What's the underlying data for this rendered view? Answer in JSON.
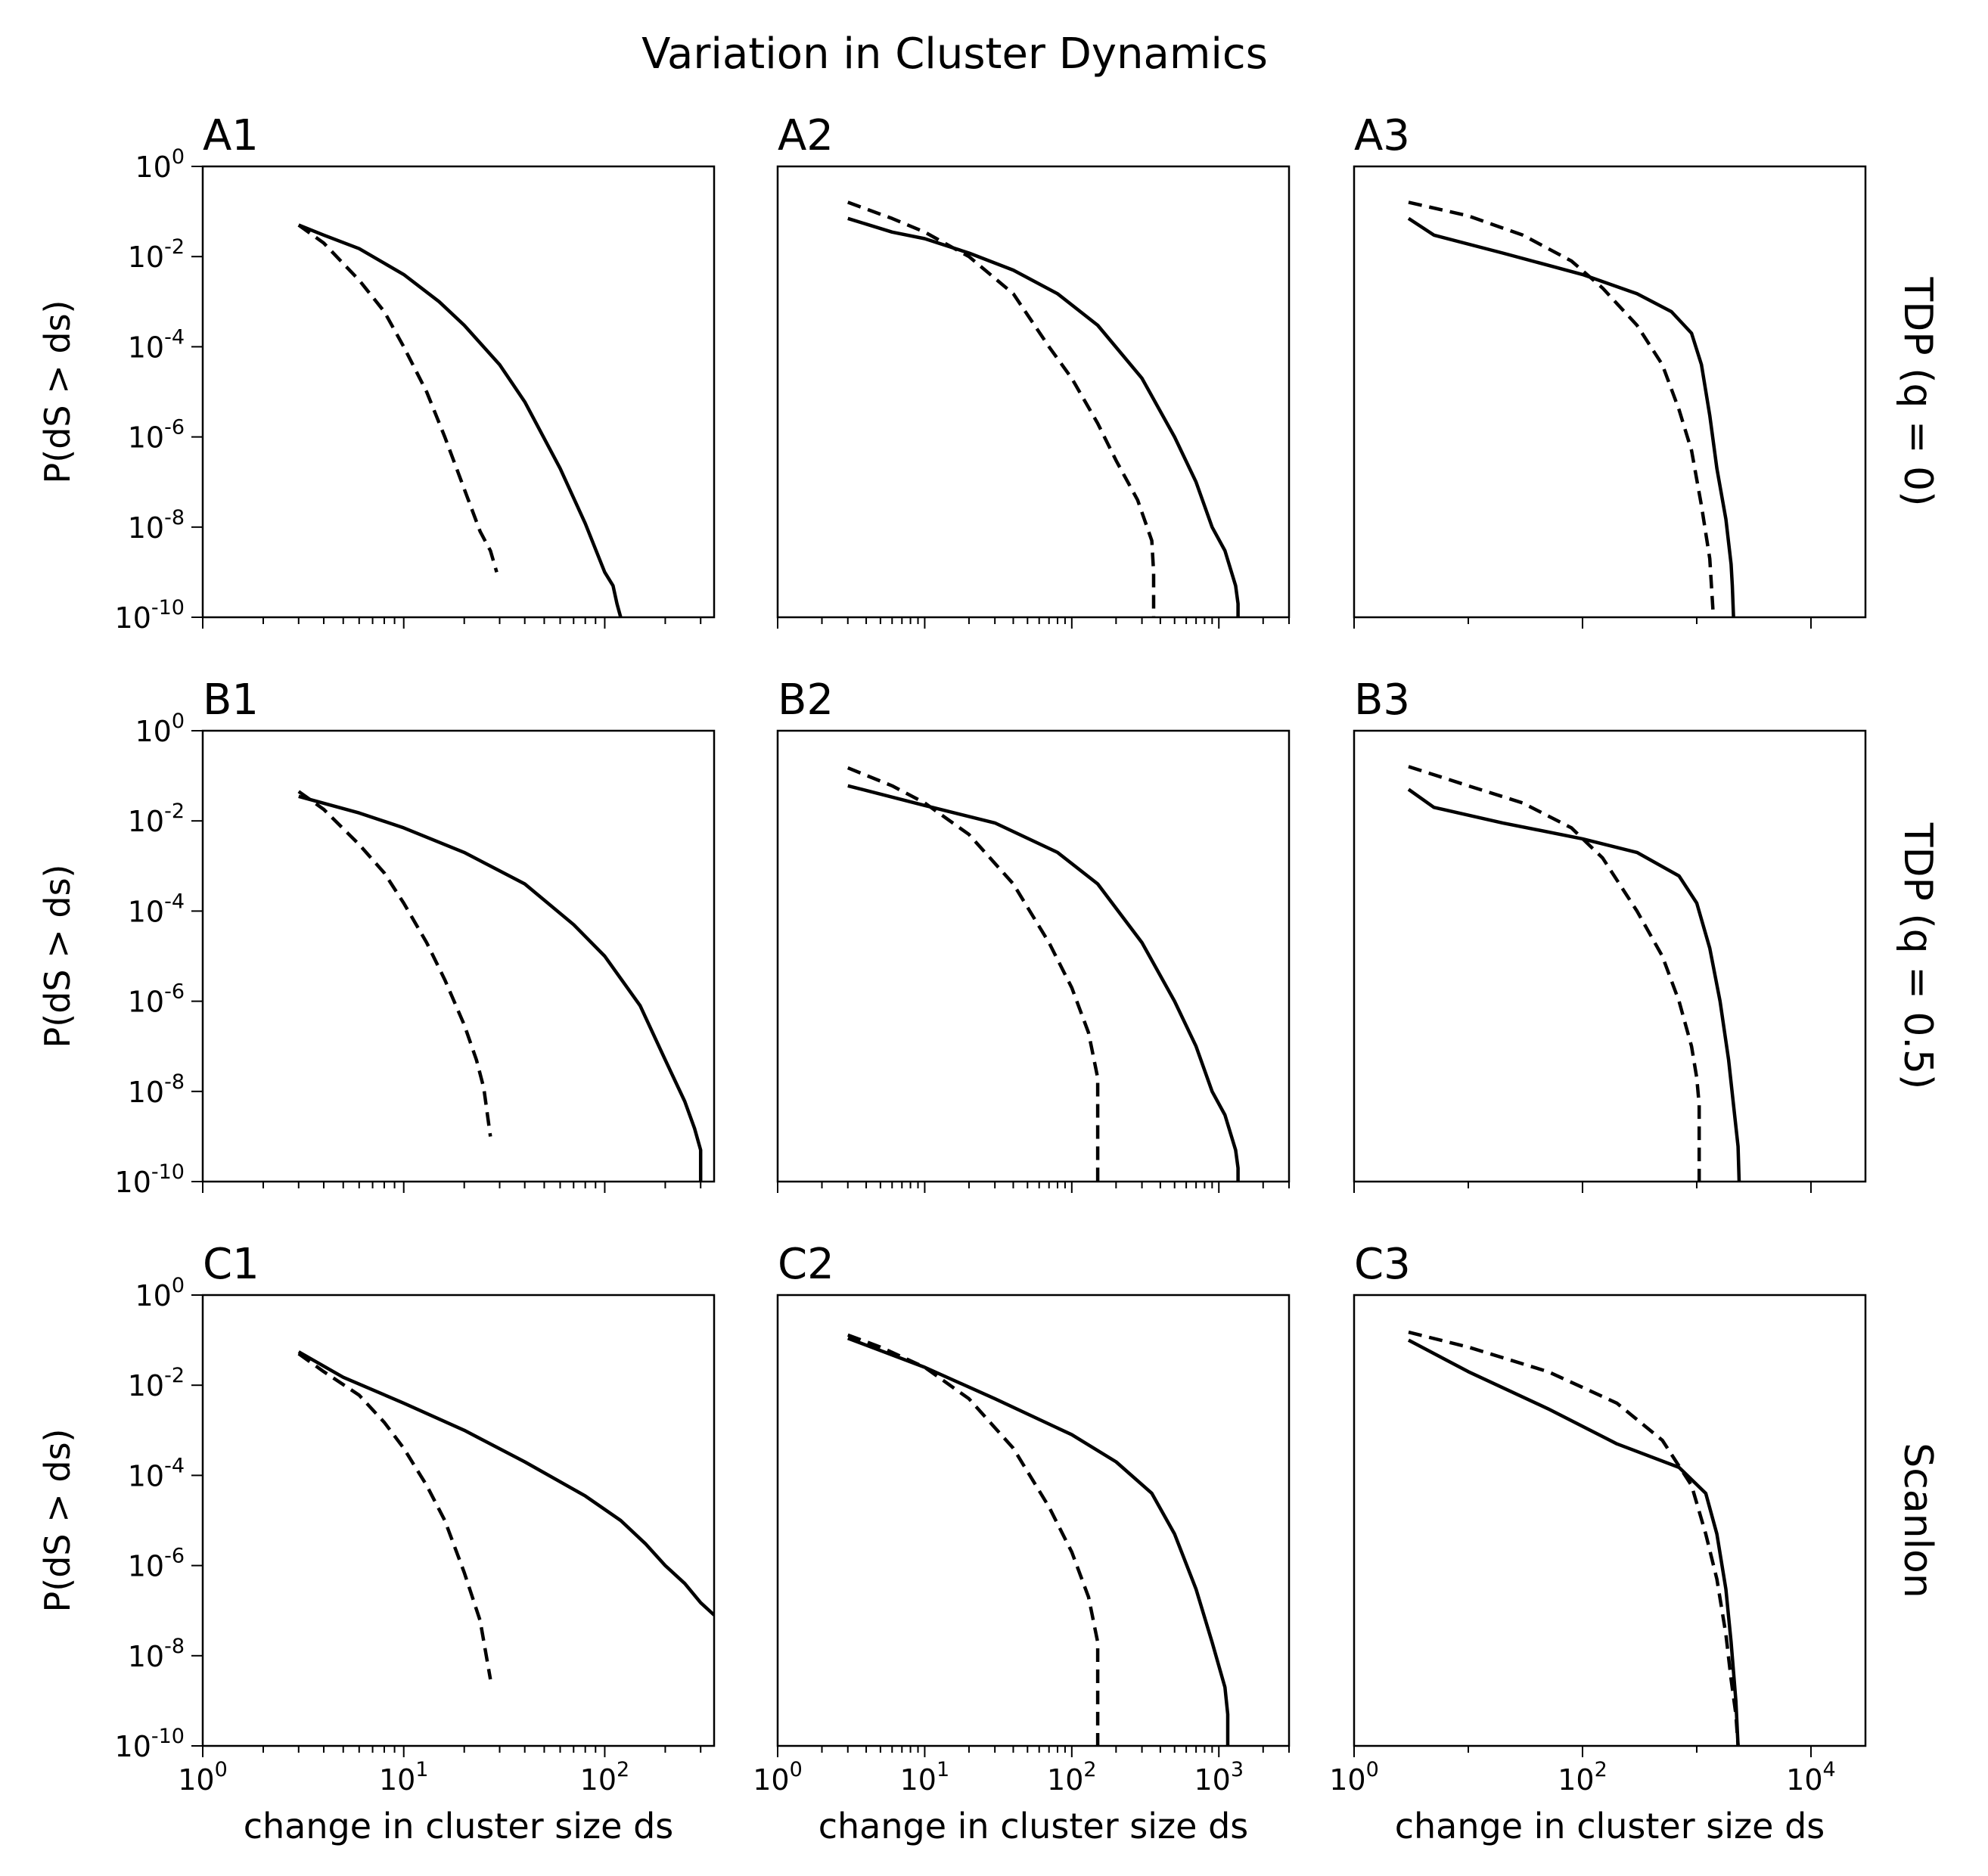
{
  "figure": {
    "title": "Variation in Cluster Dynamics",
    "row_labels": [
      "TDP (q = 0)",
      "TDP (q = 0.5)",
      "Scanlon"
    ],
    "xlabel": "change in cluster size ds",
    "ylabel": "P(dS > ds)",
    "colors": {
      "line": "#000000",
      "background": "#ffffff"
    }
  },
  "chart_data": [
    {
      "panel": "A1",
      "type": "line",
      "xscale": "log",
      "yscale": "log",
      "xlim": [
        1,
        350
      ],
      "ylim": [
        1e-10,
        1
      ],
      "series": [
        {
          "style": "solid",
          "x": [
            3,
            4,
            6,
            10,
            15,
            20,
            30,
            40,
            60,
            80,
            100,
            110,
            115,
            120,
            120
          ],
          "y": [
            0.05,
            0.03,
            0.015,
            0.004,
            0.001,
            0.0003,
            4e-05,
            6e-06,
            2e-07,
            1.2e-08,
            1e-09,
            5e-10,
            2e-10,
            1e-10,
            1e-10
          ]
        },
        {
          "style": "dashed",
          "x": [
            3,
            4,
            5,
            6,
            8,
            10,
            13,
            16,
            20,
            24,
            27,
            29
          ],
          "y": [
            0.05,
            0.02,
            0.007,
            0.003,
            0.0006,
            0.0001,
            1e-05,
            1e-06,
            7e-08,
            8e-09,
            3e-09,
            1e-09
          ]
        }
      ]
    },
    {
      "panel": "A2",
      "type": "line",
      "xscale": "log",
      "yscale": "log",
      "xlim": [
        1,
        3000
      ],
      "ylim": [
        1e-10,
        1
      ],
      "series": [
        {
          "style": "solid",
          "x": [
            3,
            6,
            10,
            20,
            40,
            80,
            150,
            300,
            500,
            700,
            900,
            1100,
            1300,
            1350,
            1350
          ],
          "y": [
            0.07,
            0.035,
            0.025,
            0.012,
            0.005,
            0.0015,
            0.0003,
            2e-05,
            1e-06,
            1e-07,
            1e-08,
            3e-09,
            5e-10,
            2e-10,
            1e-10
          ]
        },
        {
          "style": "dashed",
          "x": [
            3,
            6,
            10,
            20,
            40,
            70,
            100,
            150,
            200,
            280,
            350,
            360,
            360
          ],
          "y": [
            0.16,
            0.07,
            0.035,
            0.01,
            0.0015,
            0.0001,
            2e-05,
            2e-06,
            3e-07,
            4e-08,
            5e-09,
            1e-09,
            1e-10
          ]
        }
      ]
    },
    {
      "panel": "A3",
      "type": "line",
      "xscale": "log",
      "yscale": "log",
      "xlim": [
        1,
        30000
      ],
      "ylim": [
        1e-10,
        1
      ],
      "series": [
        {
          "style": "solid",
          "x": [
            3,
            5,
            20,
            100,
            300,
            600,
            900,
            1100,
            1300,
            1500,
            1800,
            2000,
            2050,
            2100
          ],
          "y": [
            0.07,
            0.03,
            0.012,
            0.004,
            0.0015,
            0.0006,
            0.0002,
            4e-05,
            3e-06,
            2e-07,
            1.5e-08,
            1.5e-09,
            5e-10,
            1e-10
          ]
        },
        {
          "style": "dashed",
          "x": [
            3,
            10,
            30,
            80,
            150,
            300,
            500,
            700,
            900,
            1100,
            1300,
            1400
          ],
          "y": [
            0.16,
            0.08,
            0.03,
            0.008,
            0.002,
            0.0003,
            4e-05,
            4e-06,
            5e-07,
            3e-08,
            2e-09,
            1e-10
          ]
        }
      ]
    },
    {
      "panel": "B1",
      "type": "line",
      "xscale": "log",
      "yscale": "log",
      "xlim": [
        1,
        350
      ],
      "ylim": [
        1e-10,
        1
      ],
      "series": [
        {
          "style": "solid",
          "x": [
            3,
            6,
            10,
            20,
            40,
            70,
            100,
            150,
            200,
            250,
            280,
            300,
            300
          ],
          "y": [
            0.035,
            0.015,
            0.007,
            0.002,
            0.0004,
            5e-05,
            1e-05,
            8e-07,
            5e-08,
            6e-09,
            1.5e-09,
            5e-10,
            1e-10
          ]
        },
        {
          "style": "dashed",
          "x": [
            3,
            4,
            6,
            8,
            10,
            13,
            16,
            20,
            23,
            25,
            27
          ],
          "y": [
            0.045,
            0.018,
            0.003,
            0.0007,
            0.00015,
            2e-05,
            3e-06,
            3e-07,
            5e-08,
            1.2e-08,
            1e-09
          ]
        }
      ]
    },
    {
      "panel": "B2",
      "type": "line",
      "xscale": "log",
      "yscale": "log",
      "xlim": [
        1,
        3000
      ],
      "ylim": [
        1e-10,
        1
      ],
      "series": [
        {
          "style": "solid",
          "x": [
            3,
            10,
            30,
            80,
            150,
            300,
            500,
            700,
            900,
            1100,
            1300,
            1350,
            1350
          ],
          "y": [
            0.06,
            0.022,
            0.009,
            0.002,
            0.0004,
            2e-05,
            1e-06,
            1e-07,
            1e-08,
            3e-09,
            5e-10,
            2e-10,
            1e-10
          ]
        },
        {
          "style": "dashed",
          "x": [
            3,
            6,
            10,
            20,
            40,
            70,
            100,
            130,
            150,
            150
          ],
          "y": [
            0.15,
            0.06,
            0.025,
            0.005,
            0.0004,
            2e-05,
            2e-06,
            2e-07,
            2e-08,
            1e-10
          ]
        }
      ]
    },
    {
      "panel": "B3",
      "type": "line",
      "xscale": "log",
      "yscale": "log",
      "xlim": [
        1,
        30000
      ],
      "ylim": [
        1e-10,
        1
      ],
      "series": [
        {
          "style": "solid",
          "x": [
            3,
            5,
            20,
            100,
            300,
            700,
            1000,
            1300,
            1600,
            1900,
            2100,
            2300,
            2350
          ],
          "y": [
            0.05,
            0.02,
            0.009,
            0.004,
            0.002,
            0.0006,
            0.00015,
            1.5e-05,
            1e-06,
            5e-08,
            5e-09,
            6e-10,
            1e-10
          ]
        },
        {
          "style": "dashed",
          "x": [
            3,
            10,
            30,
            80,
            150,
            300,
            500,
            700,
            900,
            1000,
            1050,
            1050
          ],
          "y": [
            0.16,
            0.06,
            0.025,
            0.007,
            0.0015,
            0.0001,
            1e-05,
            1e-06,
            1e-07,
            2e-08,
            5e-09,
            1e-10
          ]
        }
      ]
    },
    {
      "panel": "C1",
      "type": "line",
      "xscale": "log",
      "yscale": "log",
      "xlim": [
        1,
        350
      ],
      "ylim": [
        1e-10,
        1
      ],
      "series": [
        {
          "style": "solid",
          "x": [
            3,
            5,
            10,
            20,
            40,
            80,
            120,
            160,
            200,
            250,
            300,
            350
          ],
          "y": [
            0.055,
            0.015,
            0.004,
            0.001,
            0.0002,
            3.5e-05,
            1e-05,
            3e-06,
            1e-06,
            4e-07,
            1.5e-07,
            8e-08
          ]
        },
        {
          "style": "dashed",
          "x": [
            3,
            4,
            6,
            8,
            10,
            13,
            16,
            20,
            24,
            27
          ],
          "y": [
            0.05,
            0.02,
            0.006,
            0.0015,
            0.0004,
            6e-05,
            1e-05,
            7e-07,
            6e-08,
            3e-09
          ]
        }
      ]
    },
    {
      "panel": "C2",
      "type": "line",
      "xscale": "log",
      "yscale": "log",
      "xlim": [
        1,
        3000
      ],
      "ylim": [
        1e-10,
        1
      ],
      "series": [
        {
          "style": "solid",
          "x": [
            3,
            10,
            30,
            100,
            200,
            350,
            500,
            700,
            900,
            1100,
            1150,
            1150
          ],
          "y": [
            0.11,
            0.025,
            0.005,
            0.0008,
            0.0002,
            4e-05,
            5e-06,
            3e-07,
            2e-08,
            2e-09,
            5e-10,
            1e-10
          ]
        },
        {
          "style": "dashed",
          "x": [
            3,
            5,
            10,
            20,
            40,
            70,
            100,
            130,
            150,
            150
          ],
          "y": [
            0.13,
            0.07,
            0.025,
            0.005,
            0.0004,
            2e-05,
            2e-06,
            2e-07,
            2e-08,
            1e-10
          ]
        }
      ]
    },
    {
      "panel": "C3",
      "type": "line",
      "xscale": "log",
      "yscale": "log",
      "xlim": [
        1,
        30000
      ],
      "ylim": [
        1e-10,
        1
      ],
      "series": [
        {
          "style": "solid",
          "x": [
            3,
            10,
            50,
            200,
            700,
            1200,
            1500,
            1800,
            2000,
            2200,
            2300
          ],
          "y": [
            0.1,
            0.02,
            0.003,
            0.0005,
            0.00015,
            4e-05,
            5e-06,
            3e-07,
            2e-08,
            1e-09,
            1e-10
          ]
        },
        {
          "style": "dashed",
          "x": [
            3,
            10,
            50,
            200,
            500,
            900,
            1200,
            1500,
            1800,
            2000,
            2200,
            2300
          ],
          "y": [
            0.15,
            0.07,
            0.02,
            0.004,
            0.0006,
            6e-05,
            5e-06,
            5e-07,
            3e-08,
            3e-09,
            5e-10,
            1e-10
          ]
        }
      ]
    }
  ]
}
